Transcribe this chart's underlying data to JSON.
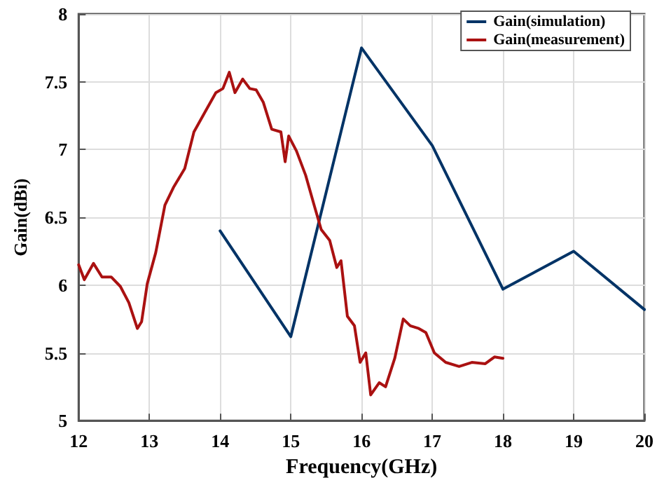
{
  "chart_data": {
    "type": "line",
    "xlabel": "Frequency(GHz)",
    "ylabel": "Gain(dBi)",
    "xlim": [
      12,
      20
    ],
    "xticks": [
      12,
      13,
      14,
      15,
      16,
      17,
      18,
      19,
      20
    ],
    "ylim": [
      5,
      8
    ],
    "yticks": [
      5,
      5.5,
      6,
      6.5,
      7,
      7.5,
      8
    ],
    "grid": true,
    "legend": "top right",
    "marker": "none",
    "line_style": "solid",
    "series": [
      {
        "name": "Gain(simulation)",
        "color": "#003366",
        "x": [
          14,
          15,
          16,
          17,
          18,
          19,
          20
        ],
        "values": [
          6.4,
          5.62,
          7.75,
          7.03,
          5.97,
          6.25,
          5.82
        ]
      },
      {
        "name": "Gain(measurement)",
        "color": "#aa1111",
        "x": [
          12.0,
          12.08,
          12.21,
          12.33,
          12.46,
          12.59,
          12.71,
          12.83,
          12.89,
          12.97,
          13.09,
          13.22,
          13.34,
          13.5,
          13.63,
          13.79,
          13.94,
          14.04,
          14.13,
          14.21,
          14.32,
          14.42,
          14.51,
          14.61,
          14.73,
          14.86,
          14.92,
          14.97,
          15.08,
          15.21,
          15.33,
          15.43,
          15.55,
          15.65,
          15.71,
          15.8,
          15.9,
          15.98,
          16.06,
          16.13,
          16.25,
          16.34,
          16.47,
          16.59,
          16.69,
          16.81,
          16.91,
          17.03,
          17.19,
          17.38,
          17.56,
          17.75,
          17.88,
          18.0
        ],
        "values": [
          6.15,
          6.04,
          6.16,
          6.06,
          6.06,
          5.99,
          5.87,
          5.68,
          5.73,
          6.01,
          6.24,
          6.59,
          6.72,
          6.86,
          7.13,
          7.28,
          7.42,
          7.45,
          7.57,
          7.42,
          7.52,
          7.45,
          7.44,
          7.35,
          7.15,
          7.13,
          6.91,
          7.1,
          6.99,
          6.81,
          6.59,
          6.41,
          6.33,
          6.13,
          6.18,
          5.77,
          5.7,
          5.43,
          5.5,
          5.19,
          5.28,
          5.25,
          5.46,
          5.75,
          5.7,
          5.68,
          5.65,
          5.5,
          5.43,
          5.4,
          5.43,
          5.42,
          5.47,
          5.46
        ]
      }
    ]
  }
}
